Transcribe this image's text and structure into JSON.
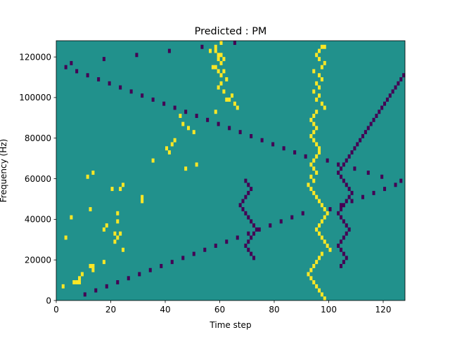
{
  "chart_data": {
    "type": "heatmap",
    "title": "Predicted : PM",
    "xlabel": "Time step",
    "ylabel": "Frequency (Hz)",
    "xlim": [
      0,
      128
    ],
    "ylim": [
      0,
      128000
    ],
    "x_ticks": [
      0,
      20,
      40,
      60,
      80,
      100,
      120
    ],
    "x_tick_labels": [
      "0",
      "20",
      "40",
      "60",
      "80",
      "100",
      "120"
    ],
    "y_ticks": [
      0,
      20000,
      40000,
      60000,
      80000,
      100000,
      120000
    ],
    "y_tick_labels": [
      "0",
      "20000",
      "40000",
      "60000",
      "80000",
      "100000",
      "120000"
    ],
    "grid": false,
    "legend": "none",
    "colors": {
      "background_value_0": "#21918c",
      "low_value_-1": "#440154",
      "high_value_1": "#fde725"
    },
    "rows": 64,
    "cols": 128,
    "yellow_cells": [
      [
        3,
        2
      ],
      [
        4,
        6
      ],
      [
        4,
        7
      ],
      [
        4,
        8
      ],
      [
        5,
        8
      ],
      [
        6,
        9
      ],
      [
        7,
        13
      ],
      [
        8,
        12
      ],
      [
        8,
        13
      ],
      [
        9,
        17
      ],
      [
        12,
        24
      ],
      [
        14,
        21
      ],
      [
        15,
        3
      ],
      [
        15,
        22
      ],
      [
        16,
        21
      ],
      [
        16,
        23
      ],
      [
        17,
        17
      ],
      [
        18,
        18
      ],
      [
        19,
        22
      ],
      [
        20,
        5
      ],
      [
        21,
        22
      ],
      [
        22,
        12
      ],
      [
        24,
        31
      ],
      [
        25,
        31
      ],
      [
        27,
        20
      ],
      [
        27,
        23
      ],
      [
        28,
        24
      ],
      [
        30,
        11
      ],
      [
        31,
        13
      ],
      [
        32,
        47
      ],
      [
        33,
        51
      ],
      [
        34,
        35
      ],
      [
        36,
        41
      ],
      [
        37,
        40
      ],
      [
        38,
        42
      ],
      [
        39,
        43
      ],
      [
        41,
        50
      ],
      [
        42,
        48
      ],
      [
        43,
        46
      ],
      [
        45,
        45
      ],
      [
        46,
        58
      ],
      [
        47,
        66
      ],
      [
        48,
        65
      ],
      [
        49,
        62
      ],
      [
        49,
        63
      ],
      [
        50,
        64
      ],
      [
        51,
        61
      ],
      [
        52,
        59
      ],
      [
        53,
        60
      ],
      [
        54,
        62
      ],
      [
        55,
        60
      ],
      [
        56,
        59
      ],
      [
        56,
        61
      ],
      [
        57,
        57
      ],
      [
        57,
        58
      ],
      [
        58,
        60
      ],
      [
        59,
        59
      ],
      [
        59,
        61
      ],
      [
        60,
        59
      ],
      [
        60,
        60
      ],
      [
        61,
        56
      ],
      [
        61,
        58
      ],
      [
        62,
        58
      ],
      [
        63,
        60
      ],
      [
        62,
        97
      ],
      [
        62,
        98
      ],
      [
        61,
        96
      ],
      [
        60,
        95
      ],
      [
        59,
        96
      ],
      [
        58,
        98
      ],
      [
        57,
        97
      ],
      [
        56,
        94
      ],
      [
        55,
        96
      ],
      [
        54,
        97
      ],
      [
        53,
        95
      ],
      [
        52,
        96
      ],
      [
        51,
        94
      ],
      [
        50,
        96
      ],
      [
        49,
        95
      ],
      [
        48,
        97
      ],
      [
        47,
        98
      ],
      [
        46,
        95
      ],
      [
        45,
        94
      ],
      [
        44,
        93
      ],
      [
        43,
        94
      ],
      [
        42,
        95
      ],
      [
        41,
        94
      ],
      [
        40,
        93
      ],
      [
        39,
        94
      ],
      [
        38,
        95
      ],
      [
        37,
        96
      ],
      [
        36,
        96
      ],
      [
        35,
        95
      ],
      [
        34,
        94
      ],
      [
        33,
        93
      ],
      [
        32,
        94
      ],
      [
        31,
        95
      ],
      [
        30,
        93
      ],
      [
        29,
        94
      ],
      [
        28,
        92
      ],
      [
        27,
        93
      ],
      [
        26,
        94
      ],
      [
        25,
        95
      ],
      [
        24,
        96
      ],
      [
        23,
        97
      ],
      [
        22,
        98
      ],
      [
        21,
        99
      ],
      [
        20,
        98
      ],
      [
        19,
        97
      ],
      [
        18,
        96
      ],
      [
        17,
        95
      ],
      [
        16,
        96
      ],
      [
        15,
        97
      ],
      [
        14,
        98
      ],
      [
        13,
        99
      ],
      [
        12,
        100
      ],
      [
        11,
        97
      ],
      [
        10,
        96
      ],
      [
        9,
        95
      ],
      [
        8,
        94
      ],
      [
        7,
        93
      ],
      [
        6,
        92
      ],
      [
        5,
        93
      ],
      [
        4,
        94
      ],
      [
        3,
        95
      ],
      [
        2,
        96
      ],
      [
        1,
        97
      ],
      [
        0,
        98
      ]
    ],
    "purple_cells": [
      [
        1,
        10
      ],
      [
        2,
        14
      ],
      [
        3,
        18
      ],
      [
        4,
        22
      ],
      [
        5,
        26
      ],
      [
        6,
        30
      ],
      [
        7,
        34
      ],
      [
        8,
        38
      ],
      [
        9,
        42
      ],
      [
        10,
        46
      ],
      [
        11,
        50
      ],
      [
        12,
        54
      ],
      [
        13,
        58
      ],
      [
        14,
        62
      ],
      [
        15,
        66
      ],
      [
        16,
        70
      ],
      [
        17,
        74
      ],
      [
        18,
        78
      ],
      [
        19,
        82
      ],
      [
        20,
        86
      ],
      [
        21,
        90
      ],
      [
        22,
        100
      ],
      [
        23,
        104
      ],
      [
        24,
        108
      ],
      [
        25,
        112
      ],
      [
        26,
        116
      ],
      [
        27,
        120
      ],
      [
        28,
        124
      ],
      [
        29,
        126
      ],
      [
        30,
        119
      ],
      [
        31,
        114
      ],
      [
        32,
        109
      ],
      [
        33,
        103
      ],
      [
        34,
        99
      ],
      [
        35,
        91
      ],
      [
        36,
        87
      ],
      [
        37,
        83
      ],
      [
        38,
        79
      ],
      [
        39,
        75
      ],
      [
        40,
        71
      ],
      [
        41,
        67
      ],
      [
        42,
        63
      ],
      [
        43,
        59
      ],
      [
        44,
        55
      ],
      [
        45,
        51
      ],
      [
        46,
        47
      ],
      [
        47,
        43
      ],
      [
        48,
        39
      ],
      [
        49,
        35
      ],
      [
        50,
        31
      ],
      [
        51,
        27
      ],
      [
        52,
        23
      ],
      [
        53,
        19
      ],
      [
        54,
        15
      ],
      [
        55,
        11
      ],
      [
        56,
        7
      ],
      [
        57,
        3
      ],
      [
        58,
        5
      ],
      [
        59,
        17
      ],
      [
        60,
        29
      ],
      [
        61,
        41
      ],
      [
        62,
        53
      ],
      [
        63,
        65
      ],
      [
        10,
        72
      ],
      [
        11,
        71
      ],
      [
        12,
        70
      ],
      [
        13,
        69
      ],
      [
        14,
        70
      ],
      [
        15,
        71
      ],
      [
        16,
        72
      ],
      [
        17,
        73
      ],
      [
        18,
        72
      ],
      [
        19,
        71
      ],
      [
        20,
        70
      ],
      [
        21,
        69
      ],
      [
        22,
        68
      ],
      [
        23,
        67
      ],
      [
        24,
        68
      ],
      [
        25,
        69
      ],
      [
        26,
        70
      ],
      [
        27,
        71
      ],
      [
        28,
        70
      ],
      [
        29,
        69
      ],
      [
        8,
        104
      ],
      [
        9,
        105
      ],
      [
        10,
        106
      ],
      [
        11,
        105
      ],
      [
        12,
        104
      ],
      [
        13,
        103
      ],
      [
        14,
        104
      ],
      [
        15,
        105
      ],
      [
        16,
        106
      ],
      [
        17,
        107
      ],
      [
        18,
        106
      ],
      [
        19,
        105
      ],
      [
        20,
        104
      ],
      [
        21,
        103
      ],
      [
        22,
        104
      ],
      [
        23,
        105
      ],
      [
        24,
        106
      ],
      [
        25,
        107
      ],
      [
        26,
        108
      ],
      [
        27,
        107
      ],
      [
        28,
        106
      ],
      [
        29,
        105
      ],
      [
        30,
        104
      ],
      [
        31,
        103
      ],
      [
        32,
        104
      ],
      [
        33,
        105
      ],
      [
        34,
        106
      ],
      [
        35,
        107
      ],
      [
        36,
        108
      ],
      [
        37,
        109
      ],
      [
        38,
        110
      ],
      [
        39,
        111
      ],
      [
        40,
        112
      ],
      [
        41,
        113
      ],
      [
        42,
        114
      ],
      [
        43,
        115
      ],
      [
        44,
        116
      ],
      [
        45,
        117
      ],
      [
        46,
        118
      ],
      [
        47,
        119
      ],
      [
        48,
        120
      ],
      [
        49,
        121
      ],
      [
        50,
        122
      ],
      [
        51,
        123
      ],
      [
        52,
        124
      ],
      [
        53,
        125
      ],
      [
        54,
        126
      ],
      [
        55,
        127
      ]
    ]
  }
}
